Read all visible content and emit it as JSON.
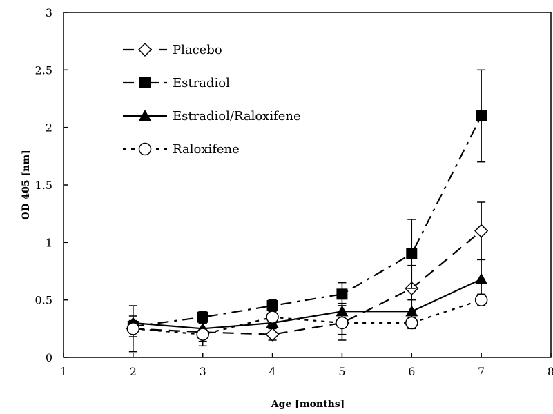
{
  "chart_data": {
    "type": "line",
    "title": "",
    "xlabel": "Age [months]",
    "ylabel": "OD 405 [nm]",
    "xlim": [
      1,
      8
    ],
    "ylim": [
      0,
      3
    ],
    "xticks": [
      1,
      2,
      3,
      4,
      5,
      6,
      7,
      8
    ],
    "yticks": [
      0,
      0.5,
      1,
      1.5,
      2,
      2.5,
      3
    ],
    "ytick_labels": [
      "0",
      "0.5",
      "1",
      "1.5",
      "2",
      "2.5",
      "3"
    ],
    "grid": false,
    "legend_position": "top-left",
    "series": [
      {
        "name": "Placebo",
        "marker": "open-diamond",
        "line_style": "long-dash",
        "x": [
          2,
          3,
          4,
          5,
          6,
          7
        ],
        "y": [
          0.25,
          0.22,
          0.2,
          0.3,
          0.6,
          1.1
        ],
        "error": [
          0.07,
          0.08,
          0.05,
          0.1,
          0.2,
          0.25
        ]
      },
      {
        "name": "Estradiol",
        "marker": "filled-square",
        "line_style": "dash-dot",
        "x": [
          2,
          3,
          4,
          5,
          6,
          7
        ],
        "y": [
          0.27,
          0.35,
          0.45,
          0.55,
          0.9,
          2.1
        ],
        "error": [
          0.05,
          0.05,
          0.05,
          0.1,
          0.3,
          0.4
        ]
      },
      {
        "name": "Estradiol/Raloxifene",
        "marker": "filled-triangle",
        "line_style": "solid",
        "x": [
          2,
          3,
          4,
          5,
          6,
          7
        ],
        "y": [
          0.3,
          0.25,
          0.3,
          0.4,
          0.4,
          0.68
        ],
        "error": [
          0.06,
          0.05,
          0.05,
          0.07,
          0.1,
          0.17
        ]
      },
      {
        "name": "Raloxifene",
        "marker": "open-circle",
        "line_style": "dotted",
        "x": [
          2,
          3,
          4,
          5,
          6,
          7
        ],
        "y": [
          0.25,
          0.2,
          0.35,
          0.3,
          0.3,
          0.5
        ],
        "error": [
          0.2,
          0.1,
          0.05,
          0.15,
          0.05,
          0.05
        ]
      }
    ]
  }
}
